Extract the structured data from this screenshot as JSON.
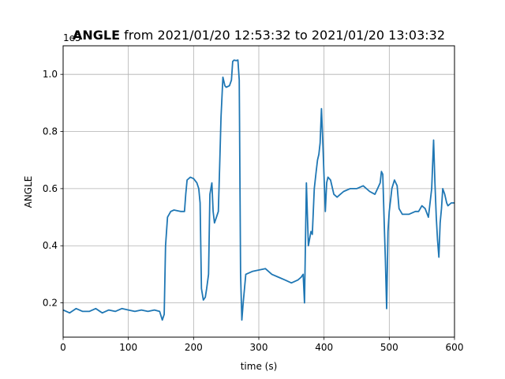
{
  "chart_data": {
    "type": "line",
    "title": {
      "bold": "ANGLE",
      "rest": " from 2021/01/20 12:53:32 to 2021/01/20 13:03:32"
    },
    "xlabel": "time (s)",
    "ylabel": "ANGLE",
    "offset_text": "1e5",
    "xlim": [
      0,
      600
    ],
    "ylim": [
      0.08,
      1.1
    ],
    "xticks": [
      {
        "value": 0,
        "label": "0"
      },
      {
        "value": 100,
        "label": "100"
      },
      {
        "value": 200,
        "label": "200"
      },
      {
        "value": 300,
        "label": "300"
      },
      {
        "value": 400,
        "label": "400"
      },
      {
        "value": 500,
        "label": "500"
      },
      {
        "value": 600,
        "label": "600"
      }
    ],
    "yticks": [
      {
        "value": 0.2,
        "label": "0.2"
      },
      {
        "value": 0.4,
        "label": "0.4"
      },
      {
        "value": 0.6,
        "label": "0.6"
      },
      {
        "value": 0.8,
        "label": "0.8"
      },
      {
        "value": 1.0,
        "label": "1.0"
      }
    ],
    "grid": true,
    "series_color": "#1f77b4",
    "series": [
      {
        "x": [
          0,
          10,
          20,
          30,
          40,
          50,
          60,
          70,
          80,
          90,
          100,
          110,
          120,
          130,
          140,
          148,
          152,
          155,
          157,
          160,
          165,
          170,
          180,
          186,
          188,
          190,
          195,
          200,
          205,
          208,
          210,
          212,
          215,
          218,
          220,
          223,
          225,
          228,
          230,
          232,
          235,
          238,
          240,
          242,
          245,
          248,
          250,
          255,
          258,
          260,
          262,
          265,
          268,
          270,
          272,
          274,
          276,
          280,
          290,
          300,
          310,
          320,
          330,
          340,
          350,
          360,
          365,
          368,
          370,
          373,
          376,
          380,
          382,
          385,
          388,
          390,
          392,
          394,
          396,
          398,
          400,
          402,
          404,
          406,
          410,
          415,
          420,
          425,
          430,
          440,
          450,
          460,
          470,
          478,
          482,
          486,
          488,
          490,
          492,
          494,
          496,
          498,
          500,
          502,
          504,
          508,
          512,
          515,
          520,
          530,
          540,
          545,
          550,
          555,
          560,
          565,
          568,
          570,
          572,
          574,
          576,
          578,
          580,
          582,
          585,
          588,
          590,
          595,
          600
        ],
        "y": [
          0.175,
          0.165,
          0.18,
          0.17,
          0.17,
          0.18,
          0.165,
          0.175,
          0.17,
          0.18,
          0.175,
          0.17,
          0.175,
          0.17,
          0.175,
          0.17,
          0.14,
          0.16,
          0.4,
          0.5,
          0.52,
          0.525,
          0.52,
          0.52,
          0.58,
          0.63,
          0.64,
          0.635,
          0.62,
          0.6,
          0.55,
          0.25,
          0.21,
          0.22,
          0.25,
          0.3,
          0.58,
          0.62,
          0.52,
          0.48,
          0.5,
          0.52,
          0.68,
          0.85,
          0.99,
          0.96,
          0.955,
          0.96,
          0.98,
          1.045,
          1.05,
          1.048,
          1.05,
          0.98,
          0.3,
          0.14,
          0.2,
          0.3,
          0.31,
          0.315,
          0.32,
          0.3,
          0.29,
          0.28,
          0.27,
          0.28,
          0.29,
          0.3,
          0.2,
          0.62,
          0.4,
          0.45,
          0.44,
          0.6,
          0.66,
          0.7,
          0.72,
          0.76,
          0.88,
          0.77,
          0.64,
          0.52,
          0.62,
          0.64,
          0.63,
          0.58,
          0.57,
          0.58,
          0.59,
          0.6,
          0.6,
          0.61,
          0.59,
          0.58,
          0.6,
          0.62,
          0.66,
          0.65,
          0.5,
          0.35,
          0.18,
          0.45,
          0.52,
          0.56,
          0.6,
          0.63,
          0.61,
          0.53,
          0.51,
          0.51,
          0.52,
          0.52,
          0.54,
          0.53,
          0.5,
          0.6,
          0.77,
          0.62,
          0.5,
          0.42,
          0.36,
          0.48,
          0.53,
          0.6,
          0.58,
          0.55,
          0.54,
          0.55,
          0.55
        ]
      }
    ]
  }
}
